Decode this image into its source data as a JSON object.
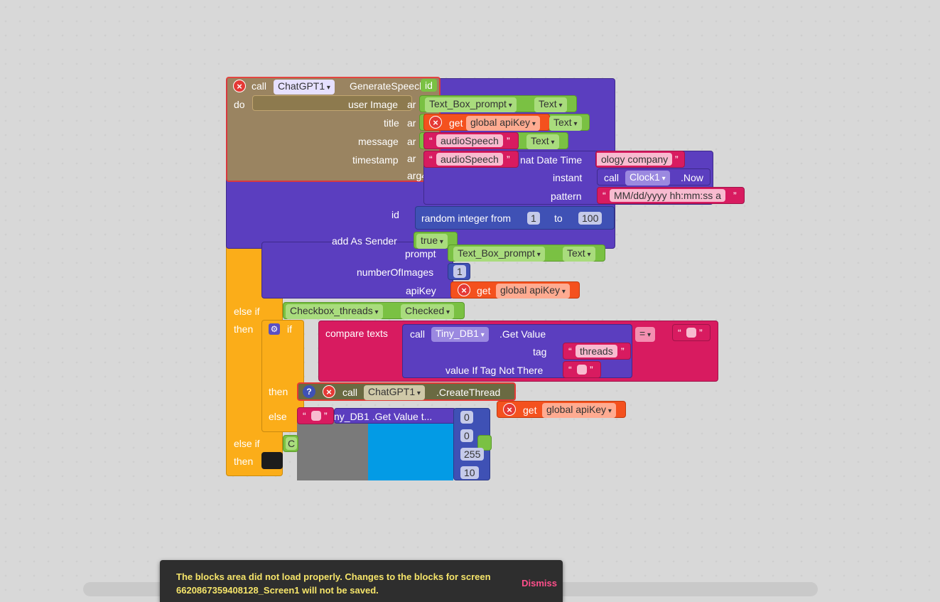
{
  "blocks": {
    "generate_speech": {
      "call": "call",
      "component": "ChatGPT1",
      "method": "GenerateSpeech",
      "extra": "id"
    },
    "do_label": "do",
    "args": {
      "user_image": "user Image",
      "title": "title",
      "message": "message",
      "timestamp": "timestamp",
      "arg4": "arg4",
      "ar": "ar"
    },
    "text_box_prompt": {
      "component": "Text_Box_prompt",
      "prop": "Text"
    },
    "get_global": {
      "get": "get",
      "var": "global apiKey",
      "prop": "Text"
    },
    "audio_speech_1": {
      "text": "audioSpeech",
      "prop": "Text"
    },
    "audio_speech_2": {
      "text": "audioSpeech"
    },
    "format_date": {
      "label": "nat Date Time",
      "tail": "ology company"
    },
    "instant": {
      "label": "instant",
      "call": "call",
      "component": "Clock1",
      "method": ".Now"
    },
    "pattern": {
      "label": "pattern",
      "value": "MM/dd/yyyy hh:mm:ss a"
    },
    "id": {
      "label": "id",
      "random": "random integer from",
      "from": "1",
      "to_label": "to",
      "to": "100"
    },
    "add_as_sender": {
      "label": "add As Sender",
      "value": "true"
    },
    "prompt": {
      "label": "prompt",
      "component": "Text_Box_prompt",
      "prop": "Text"
    },
    "num_images": {
      "label": "numberOfImages",
      "value": "1"
    },
    "api_key": {
      "label": "apiKey",
      "get": "get",
      "var": "global apiKey"
    },
    "else_if_1": {
      "label": "else if",
      "component": "Checkbox_threads",
      "prop": "Checked"
    },
    "then_1": "then",
    "if_label": "if",
    "compare": {
      "label": "compare texts",
      "call": "call",
      "component": "Tiny_DB1",
      "method": ".Get Value",
      "op": "="
    },
    "tag": {
      "label": "tag",
      "value": "threads"
    },
    "value_if_not": {
      "label": "value If Tag Not There"
    },
    "then_2": "then",
    "create_thread": {
      "call": "call",
      "component": "ChatGPT1",
      "method": ".CreateThread",
      "arg": "ar"
    },
    "api_key_2": {
      "get": "get",
      "var": "global apiKey"
    },
    "else_label": "else",
    "tinydb_get": "ny_DB1 .Get Value t...",
    "color_vals": [
      "0",
      "0",
      "255",
      "10"
    ],
    "else_if_2": {
      "label": "else if",
      "partial": "C"
    },
    "then_3": "then",
    "quote_open": "“",
    "quote_close": "”"
  },
  "toast": {
    "message_line1": "The blocks area did not load properly. Changes to the blocks for screen",
    "message_line2": "6620867359408128_Screen1 will not be saved.",
    "dismiss": "Dismiss"
  },
  "colors": {
    "background": "#1c1c1c",
    "purple_method": "#5b3ebf",
    "orange_control": "#fbad19",
    "green_component": "#7ac143",
    "pink_text": "#d81b60",
    "red_global": "#f4511e",
    "blue_math": "#3f51b5",
    "toast_text": "#f6e56a",
    "dismiss": "#ff4f8b"
  }
}
